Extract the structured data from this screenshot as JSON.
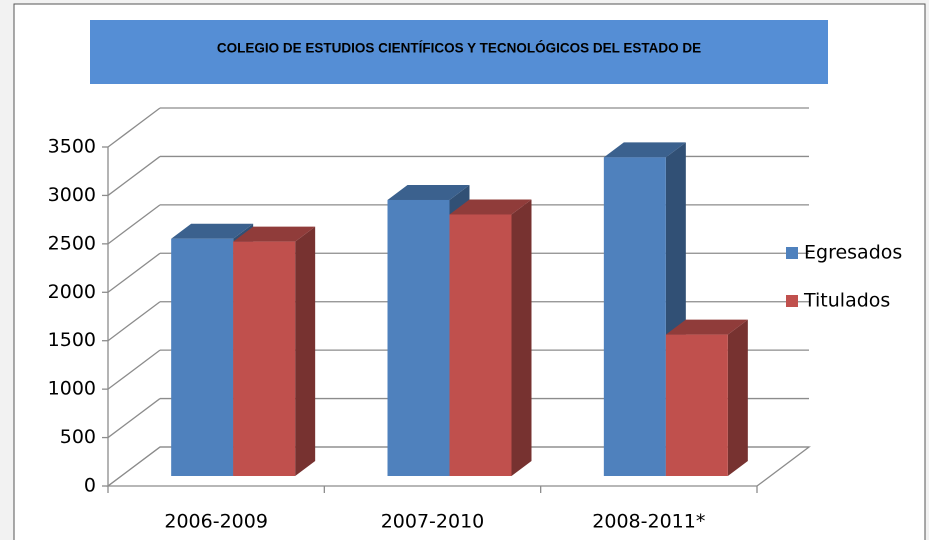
{
  "chart_data": {
    "type": "bar3d",
    "title": "COLEGIO DE ESTUDIOS CIENTÍFICOS Y TECNOLÓGICOS DEL ESTADO DE",
    "categories": [
      "2006-2009",
      "2007-2010",
      "2008-2011*"
    ],
    "series": [
      {
        "name": "Egresados",
        "color": "#4f81bd",
        "values": [
          2450,
          2850,
          3290
        ]
      },
      {
        "name": "Titulados",
        "color": "#c0504d",
        "values": [
          2420,
          2700,
          1460
        ]
      }
    ],
    "ylim": [
      0,
      3500
    ],
    "yticks": [
      0,
      500,
      1000,
      1500,
      2000,
      2500,
      3000,
      3500
    ],
    "grid": true,
    "legend": "right"
  }
}
